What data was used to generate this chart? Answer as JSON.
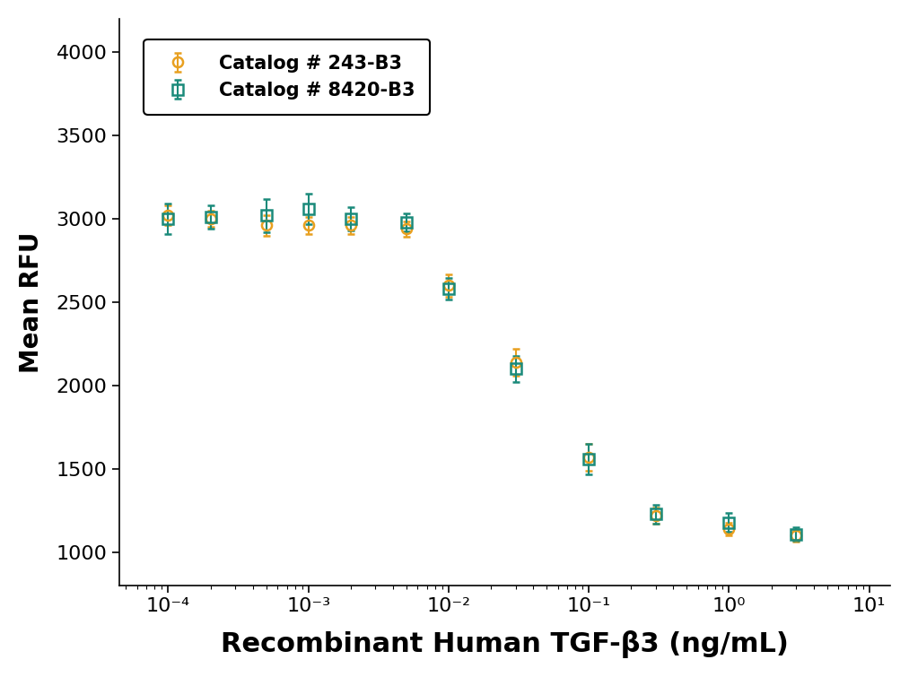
{
  "title": "",
  "xlabel": "Recombinant Human TGF-β3 (ng/mL)",
  "ylabel": "Mean RFU",
  "ylim": [
    800,
    4200
  ],
  "yticks": [
    1000,
    1500,
    2000,
    2500,
    3000,
    3500,
    4000
  ],
  "background_color": "#ffffff",
  "series": [
    {
      "label": "Catalog # 243-B3",
      "color": "#E8A020",
      "marker": "o",
      "markersize": 8,
      "x": [
        0.0001,
        0.0002,
        0.0005,
        0.001,
        0.002,
        0.005,
        0.01,
        0.03,
        0.1,
        0.3,
        1.0,
        3.0
      ],
      "y": [
        3020,
        3000,
        2960,
        2960,
        2960,
        2940,
        2600,
        2140,
        1570,
        1220,
        1140,
        1100
      ],
      "yerr": [
        60,
        50,
        60,
        50,
        50,
        45,
        65,
        80,
        80,
        50,
        40,
        35
      ]
    },
    {
      "label": "Catalog # 8420-B3",
      "color": "#1A8A7A",
      "marker": "s",
      "markersize": 8,
      "x": [
        0.0001,
        0.0002,
        0.0005,
        0.001,
        0.002,
        0.005,
        0.01,
        0.03,
        0.1,
        0.3,
        1.0,
        3.0
      ],
      "y": [
        3000,
        3010,
        3020,
        3060,
        3000,
        2980,
        2580,
        2100,
        1560,
        1230,
        1180,
        1110
      ],
      "yerr": [
        90,
        70,
        100,
        90,
        70,
        55,
        65,
        80,
        90,
        55,
        55,
        40
      ]
    }
  ],
  "legend_loc": "upper left",
  "xlabel_fontsize": 22,
  "ylabel_fontsize": 20,
  "tick_fontsize": 16,
  "legend_fontsize": 15,
  "linewidth": 2.2
}
